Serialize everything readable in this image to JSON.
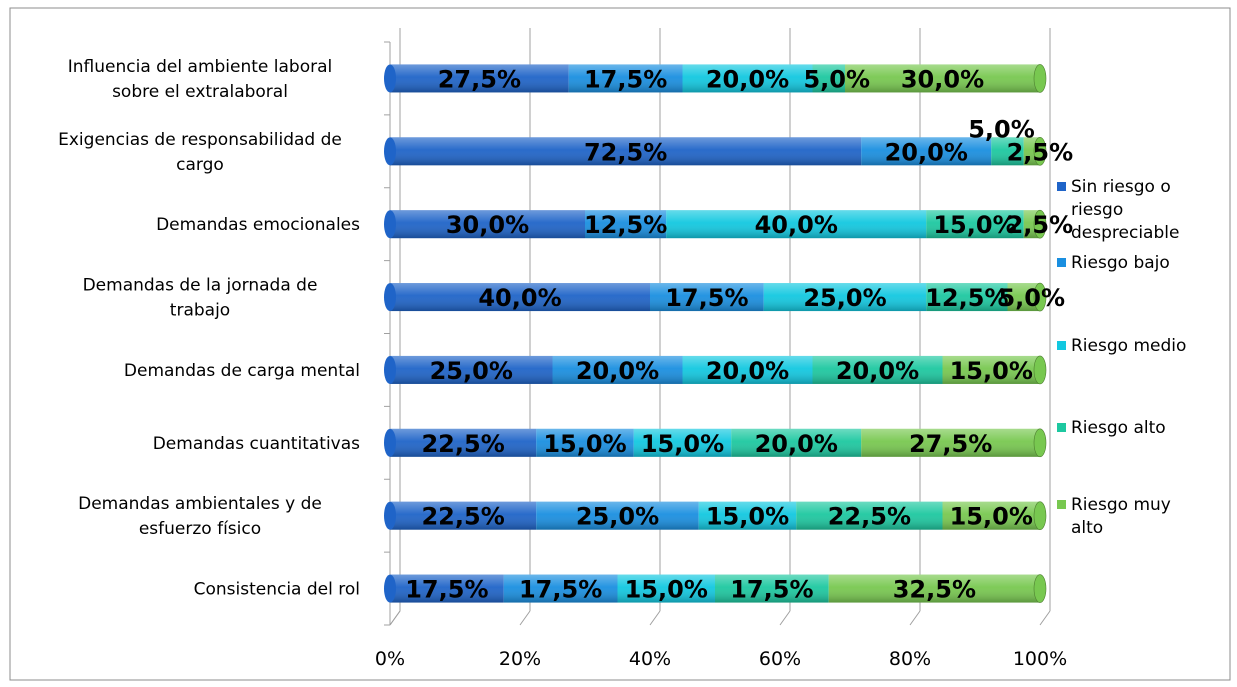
{
  "chart_data": {
    "type": "bar",
    "orientation": "horizontal",
    "stacked": "100%",
    "categories": [
      [
        "Influencia del ambiente laboral",
        "sobre el extralaboral"
      ],
      [
        "Exigencias de responsabilidad de",
        "cargo"
      ],
      [
        "Demandas emocionales"
      ],
      [
        "Demandas de la jornada de",
        "trabajo"
      ],
      [
        "Demandas de carga mental"
      ],
      [
        "Demandas cuantitativas"
      ],
      [
        "Demandas ambientales y de",
        "esfuerzo físico"
      ],
      [
        "Consistencia del rol"
      ]
    ],
    "series": [
      {
        "name": "Sin riesgo o riesgo despreciable",
        "legend_lines": [
          "Sin riesgo o",
          "riesgo",
          "despreciable"
        ],
        "color": "#1F64C8",
        "values": [
          27.5,
          72.5,
          30.0,
          40.0,
          25.0,
          22.5,
          22.5,
          17.5
        ],
        "labels": [
          "27,5%",
          "72,5%",
          "30,0%",
          "40,0%",
          "25,0%",
          "22,5%",
          "22,5%",
          "17,5%"
        ]
      },
      {
        "name": "Riesgo bajo",
        "legend_lines": [
          "Riesgo bajo"
        ],
        "color": "#1A8FE0",
        "values": [
          17.5,
          20.0,
          12.5,
          17.5,
          20.0,
          15.0,
          25.0,
          17.5
        ],
        "labels": [
          "17,5%",
          "20,0%",
          "12,5%",
          "17,5%",
          "20,0%",
          "15,0%",
          "25,0%",
          "17,5%"
        ]
      },
      {
        "name": "Riesgo medio",
        "legend_lines": [
          "Riesgo medio"
        ],
        "color": "#12C8E0",
        "values": [
          20.0,
          0.0,
          40.0,
          25.0,
          20.0,
          15.0,
          15.0,
          15.0
        ],
        "labels": [
          "20,0%",
          "",
          "40,0%",
          "25,0%",
          "20,0%",
          "15,0%",
          "15,0%",
          "15,0%"
        ]
      },
      {
        "name": "Riesgo alto",
        "legend_lines": [
          "Riesgo alto"
        ],
        "color": "#1DC8A0",
        "values": [
          5.0,
          5.0,
          15.0,
          12.5,
          20.0,
          20.0,
          22.5,
          17.5
        ],
        "labels": [
          "5,0%",
          "5,0%",
          "15,0%",
          "12,5%",
          "20,0%",
          "20,0%",
          "22,5%",
          "17,5%"
        ]
      },
      {
        "name": "Riesgo muy alto",
        "legend_lines": [
          "Riesgo muy",
          "alto"
        ],
        "color": "#78C850",
        "values": [
          30.0,
          2.5,
          2.5,
          5.0,
          15.0,
          27.5,
          15.0,
          32.5
        ],
        "labels": [
          "30,0%",
          "2,5%",
          "2,5%",
          "5,0%",
          "15,0%",
          "27,5%",
          "15,0%",
          "32,5%"
        ]
      }
    ],
    "x_ticks": [
      "0%",
      "20%",
      "40%",
      "60%",
      "80%",
      "100%"
    ],
    "xlim": [
      0,
      100
    ],
    "grid": true,
    "legend_position": "right"
  }
}
